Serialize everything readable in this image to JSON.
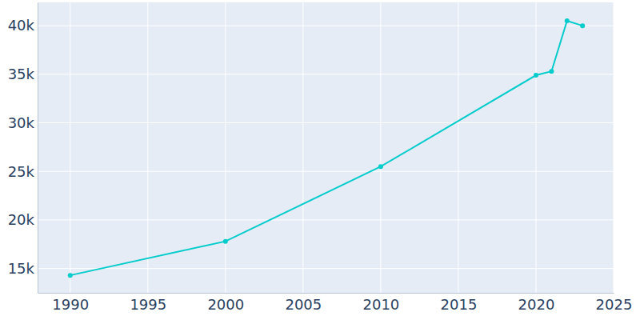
{
  "chart_data": {
    "type": "line",
    "x": [
      1990,
      2000,
      2010,
      2020,
      2021,
      2022,
      2023
    ],
    "values": [
      14300,
      17800,
      25500,
      34900,
      35300,
      40500,
      40000
    ],
    "color": "#00cccc",
    "marker": "circle",
    "xlim": [
      1987.9,
      2025
    ],
    "xticks": [
      1990,
      1995,
      2000,
      2005,
      2010,
      2015,
      2020,
      2025
    ],
    "ylim": [
      12500,
      42400
    ],
    "yticks": [
      {
        "value": 15000,
        "label": "15k"
      },
      {
        "value": 20000,
        "label": "20k"
      },
      {
        "value": 25000,
        "label": "25k"
      },
      {
        "value": 30000,
        "label": "30k"
      },
      {
        "value": 35000,
        "label": "35k"
      },
      {
        "value": 40000,
        "label": "40k"
      }
    ],
    "grid": true
  }
}
